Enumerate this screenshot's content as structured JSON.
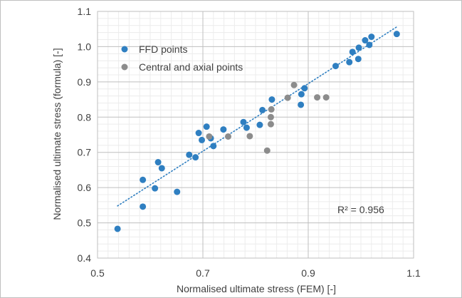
{
  "chart_data": {
    "type": "scatter",
    "title": "",
    "xlabel": "Normalised ultimate stress (FEM) [-]",
    "ylabel": "Normalised ultimate stress (formula) [-]",
    "xlim": [
      0.5,
      1.1
    ],
    "ylim": [
      0.4,
      1.1
    ],
    "x_ticks": [
      "0.5",
      "0.7",
      "0.9",
      "1.1"
    ],
    "y_ticks": [
      "0.4",
      "0.5",
      "0.6",
      "0.7",
      "0.8",
      "0.9",
      "1.0",
      "1.1"
    ],
    "grid": true,
    "legend_position": "top-left",
    "annotation": "R² = 0.956",
    "series": [
      {
        "name": "FFD points",
        "color": "#2f7fc1",
        "points": [
          [
            0.538,
            0.483
          ],
          [
            0.586,
            0.546
          ],
          [
            0.586,
            0.622
          ],
          [
            0.609,
            0.598
          ],
          [
            0.615,
            0.672
          ],
          [
            0.622,
            0.655
          ],
          [
            0.651,
            0.588
          ],
          [
            0.674,
            0.693
          ],
          [
            0.686,
            0.686
          ],
          [
            0.692,
            0.755
          ],
          [
            0.698,
            0.735
          ],
          [
            0.707,
            0.773
          ],
          [
            0.715,
            0.74
          ],
          [
            0.72,
            0.718
          ],
          [
            0.739,
            0.765
          ],
          [
            0.777,
            0.786
          ],
          [
            0.783,
            0.77
          ],
          [
            0.808,
            0.778
          ],
          [
            0.813,
            0.82
          ],
          [
            0.831,
            0.85
          ],
          [
            0.886,
            0.835
          ],
          [
            0.887,
            0.865
          ],
          [
            0.893,
            0.882
          ],
          [
            0.952,
            0.945
          ],
          [
            0.978,
            0.956
          ],
          [
            0.984,
            0.985
          ],
          [
            0.995,
            0.965
          ],
          [
            0.996,
            0.997
          ],
          [
            1.008,
            1.018
          ],
          [
            1.016,
            1.005
          ],
          [
            1.02,
            1.028
          ],
          [
            1.068,
            1.036
          ]
        ]
      },
      {
        "name": "Central and axial points",
        "color": "#8c8c8c",
        "points": [
          [
            0.712,
            0.745
          ],
          [
            0.748,
            0.745
          ],
          [
            0.789,
            0.746
          ],
          [
            0.822,
            0.705
          ],
          [
            0.829,
            0.78
          ],
          [
            0.829,
            0.8
          ],
          [
            0.83,
            0.822
          ],
          [
            0.861,
            0.855
          ],
          [
            0.873,
            0.891
          ],
          [
            0.917,
            0.856
          ],
          [
            0.934,
            0.856
          ]
        ]
      }
    ],
    "trendline": {
      "style": "dotted",
      "color": "#2f7fc1",
      "x_range": [
        0.538,
        1.068
      ],
      "y_range": [
        0.548,
        1.056
      ]
    }
  }
}
